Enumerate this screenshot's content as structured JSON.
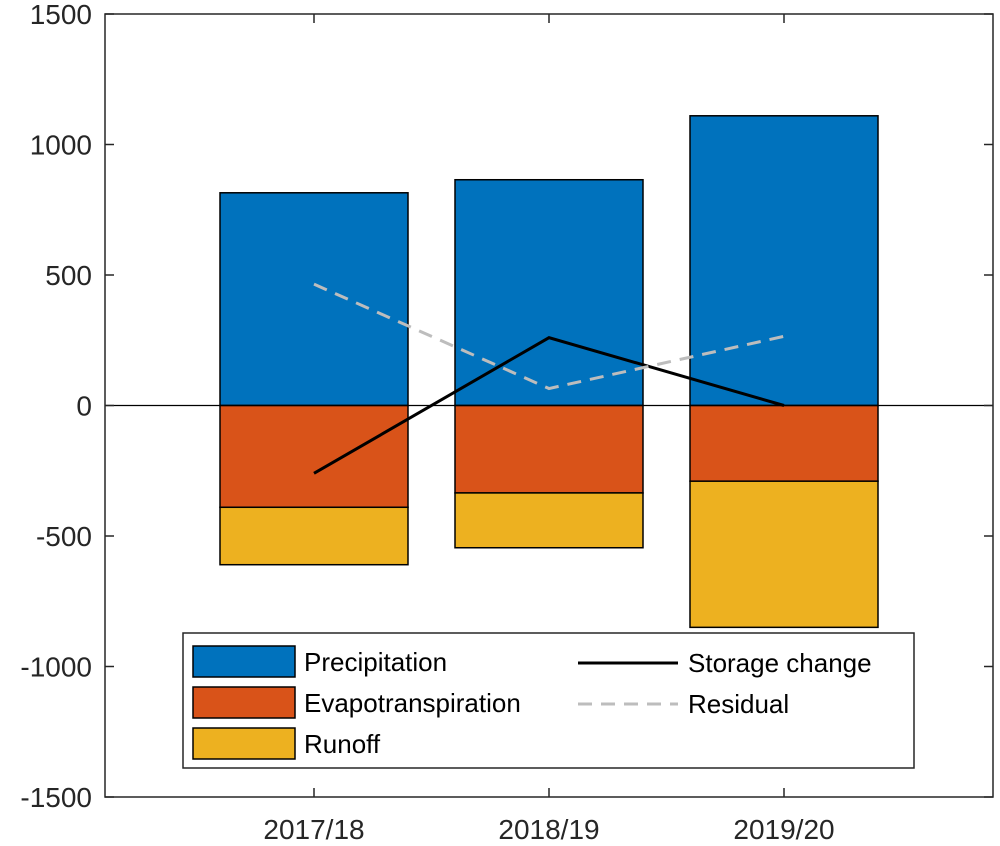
{
  "chart_data": {
    "type": "bar",
    "stacked": true,
    "categories": [
      "2017/18",
      "2018/19",
      "2019/20"
    ],
    "ylim": [
      -1500,
      1500
    ],
    "yticks": [
      -1500,
      -1000,
      -500,
      0,
      500,
      1000,
      1500
    ],
    "ytick_labels": [
      "-1500",
      "-1000",
      "-500",
      "0",
      "500",
      "1000",
      "1500"
    ],
    "series": [
      {
        "name": "Precipitation",
        "kind": "bar",
        "color": "#0072BD",
        "values": [
          815,
          865,
          1110
        ]
      },
      {
        "name": "Evapotranspiration",
        "kind": "bar",
        "color": "#D95319",
        "values": [
          -390,
          -335,
          -290
        ]
      },
      {
        "name": "Runoff",
        "kind": "bar",
        "color": "#EDB120",
        "values": [
          -220,
          -210,
          -560
        ]
      },
      {
        "name": "Storage change",
        "kind": "line",
        "color": "#000000",
        "dash": "solid",
        "values": [
          -260,
          260,
          0
        ]
      },
      {
        "name": "Residual",
        "kind": "line",
        "color": "#BDBDBD",
        "dash": "dashed",
        "values": [
          465,
          65,
          265
        ]
      }
    ],
    "legend": {
      "position": "bottom-center",
      "entries": [
        "Precipitation",
        "Evapotranspiration",
        "Runoff",
        "Storage change",
        "Residual"
      ]
    },
    "title": "",
    "xlabel": "",
    "ylabel": ""
  }
}
